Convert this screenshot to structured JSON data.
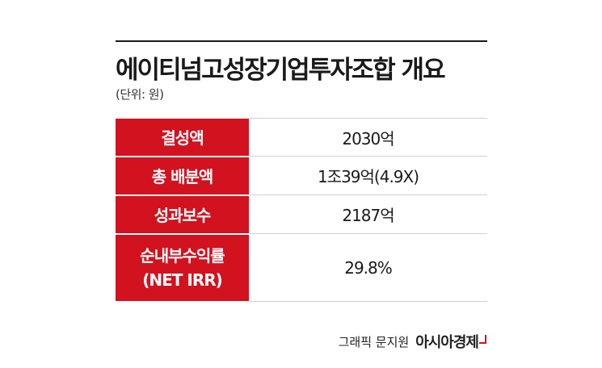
{
  "title": "에이티넘고성장기업투자조합 개요",
  "unit": "(단위: 원)",
  "rows": [
    {
      "label": "결성액",
      "value": "2030억"
    },
    {
      "label": "총 배분액",
      "value": "1조39억(4.9X)"
    },
    {
      "label": "성과보수",
      "value": "2187억"
    },
    {
      "label_line1": "순내부수익률",
      "label_line2": "(NET IRR)",
      "value": "29.8%"
    }
  ],
  "credit": {
    "byline": "그래픽 문지원",
    "brand": "아시아경제"
  },
  "colors": {
    "accent": "#d2121f",
    "text": "#1a1a1a",
    "divider": "#cfcfcf"
  }
}
